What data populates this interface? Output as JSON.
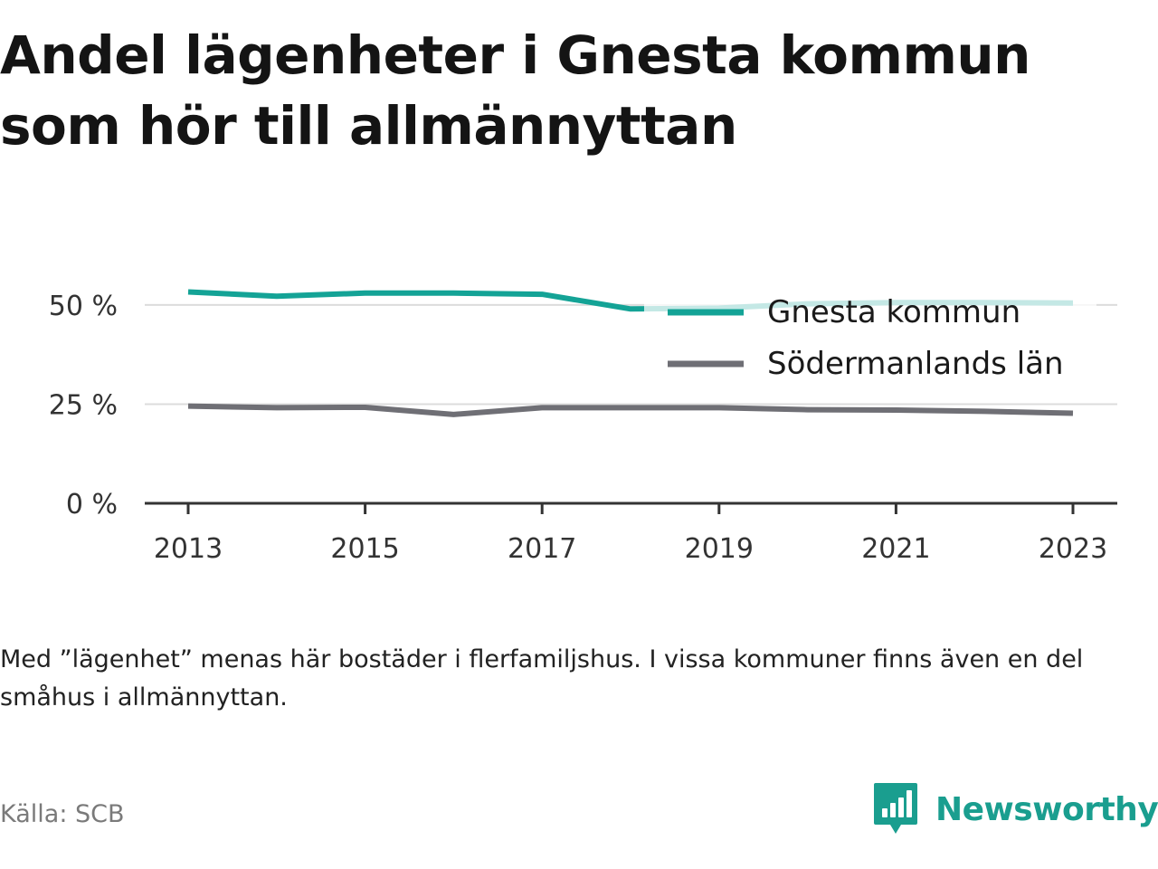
{
  "title": "Andel lägenheter i Gnesta kommun som hör till allmännyttan",
  "note": "Med ”lägenhet” menas här bostäder i flerfamiljshus. I vissa kommuner finns även en del småhus i allmännyttan.",
  "source": "Källa: SCB",
  "brand": {
    "name": "Newsworthy",
    "color": "#1a9e8f",
    "icon": "newsworthy-logo-icon"
  },
  "chart_data": {
    "type": "line",
    "x": [
      2013,
      2014,
      2015,
      2016,
      2017,
      2018,
      2019,
      2020,
      2021,
      2022,
      2023
    ],
    "x_tick_labels": [
      "2013",
      "2015",
      "2017",
      "2019",
      "2021",
      "2023"
    ],
    "y_tick_labels": [
      "0 %",
      "25 %",
      "50 %"
    ],
    "y_ticks": [
      0,
      25,
      50
    ],
    "ylim": [
      0,
      55
    ],
    "grid": true,
    "legend_position": "top-right",
    "series": [
      {
        "name": "Gnesta kommun",
        "color": "#14a396",
        "values": [
          53.3,
          52.2,
          53.0,
          53.0,
          52.7,
          49.0,
          49.2,
          50.3,
          50.6,
          50.6,
          50.5
        ]
      },
      {
        "name": "Södermanlands län",
        "color": "#6f6f75",
        "values": [
          24.5,
          24.1,
          24.2,
          22.4,
          24.1,
          24.1,
          24.1,
          23.6,
          23.5,
          23.2,
          22.7
        ]
      }
    ]
  }
}
